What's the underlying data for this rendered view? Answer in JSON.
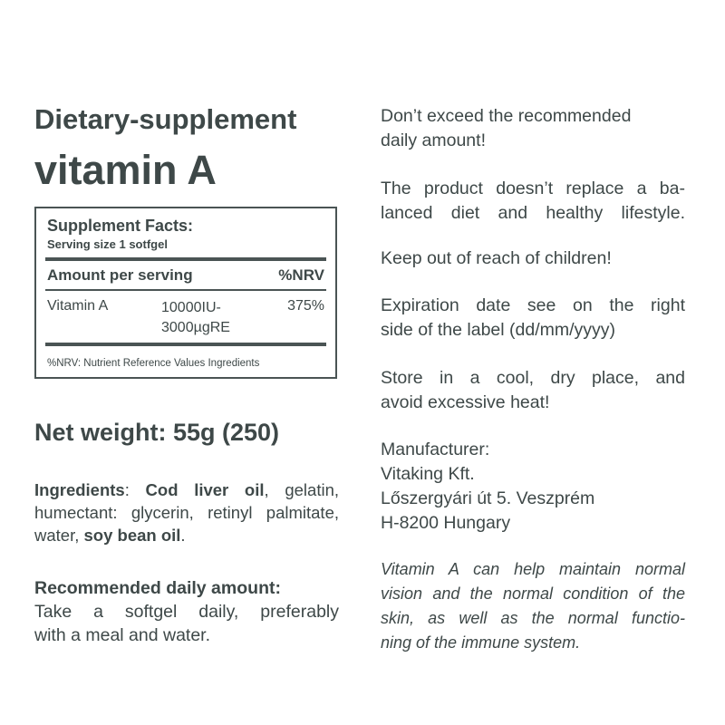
{
  "title_line1": "Dietary-supplement",
  "title_line2": "vitamin A",
  "facts": {
    "heading": "Supplement Facts:",
    "serving": "Serving size 1 sotfgel",
    "col_amount": "Amount per serving",
    "col_nrv": "%NRV",
    "row": {
      "name": "Vitamin A",
      "amount_line1": "10000IU-",
      "amount_line2": "3000µgRE",
      "nrv": "375%"
    },
    "footnote": "%NRV: Nutrient Reference Values Ingredients"
  },
  "net_weight": "Net weight: 55g (250)",
  "ingredients": {
    "label": "Ingredients",
    "sep": ": ",
    "b1": "Cod liver oil",
    "t1": ", gelatin,",
    "line2": "humectant: glycerin, retinyl palmitate,",
    "t3": "water, ",
    "b2": "soy bean oil",
    "t4": "."
  },
  "recommended": {
    "heading": "Recommended daily amount:",
    "line1": "Take a softgel daily, preferably",
    "line2": "with a meal and water."
  },
  "right": {
    "p1": [
      "Don’t exceed the recommended",
      "daily amount!"
    ],
    "p2": [
      "The product doesn’t replace a ba-",
      "lanced diet and healthy lifestyle."
    ],
    "p3": [
      "Keep out of reach of children!"
    ],
    "p4": [
      "Expiration date see on the right",
      "side of the label (dd/mm/yyyy)"
    ],
    "p5": [
      "Store in a cool, dry place, and",
      "avoid excessive heat!"
    ],
    "manufacturer": [
      "Manufacturer:",
      "Vitaking Kft.",
      "Lőszergyári út 5. Veszprém",
      "H-8200 Hungary"
    ],
    "claim": [
      "Vitamin A can help maintain normal",
      "vision and the normal condition of the",
      "skin, as well as the normal functio-",
      "ning of the immune system."
    ]
  },
  "colors": {
    "text": "#3e4848"
  }
}
